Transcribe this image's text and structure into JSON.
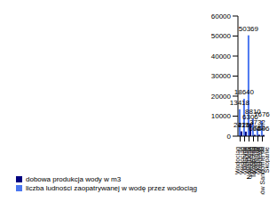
{
  "chart_data": {
    "type": "bar",
    "categories": [
      "Wodociąg Gorzyce",
      "Wodociąg Nowa Dęba",
      "Wodociąg Tarnobrzeg",
      "Wodociąg Klonowe",
      "Wodociąg Baranów Sandomierski",
      "Wodociąg Skopanie"
    ],
    "series": [
      {
        "name": "liczba ludności zaopatrywanej w wodę przez wodociąg",
        "color": "#4a76f0",
        "values": [
          13418,
          18640,
          50369,
          8810,
          3732,
          7676
        ]
      },
      {
        "name": "dobowa produkcja wody w m3",
        "color": "#000080",
        "values": [
          2413,
          2267,
          6306,
          666,
          722,
          596
        ]
      }
    ],
    "ylim": [
      0,
      60000
    ],
    "yticks": [
      0,
      10000,
      20000,
      30000,
      40000,
      50000,
      60000
    ],
    "grid": false,
    "data_labels": true,
    "legend": "bottom-left"
  }
}
